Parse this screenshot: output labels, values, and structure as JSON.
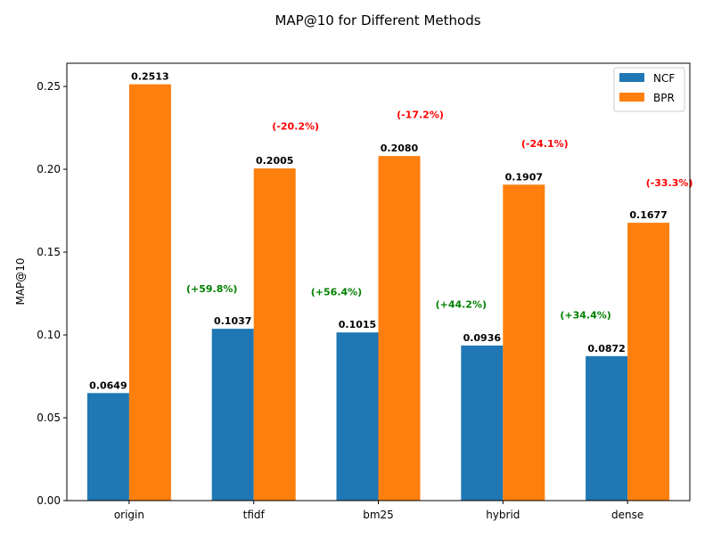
{
  "chart_data": {
    "type": "bar",
    "title": "MAP@10 for Different Methods",
    "xlabel": "",
    "ylabel": "MAP@10",
    "categories": [
      "origin",
      "tfidf",
      "bm25",
      "hybrid",
      "dense"
    ],
    "ylim": [
      0,
      0.264
    ],
    "yticks": [
      "0.00",
      "0.05",
      "0.10",
      "0.15",
      "0.20",
      "0.25"
    ],
    "grid": false,
    "legend_position": "top-right",
    "series": [
      {
        "name": "NCF",
        "color": "#1f77b4",
        "values": [
          0.0649,
          0.1037,
          0.1015,
          0.0936,
          0.0872
        ],
        "value_labels": [
          "0.0649",
          "0.1037",
          "0.1015",
          "0.0936",
          "0.0872"
        ]
      },
      {
        "name": "BPR",
        "color": "#ff7f0e",
        "values": [
          0.2513,
          0.2005,
          0.208,
          0.1907,
          0.1677
        ],
        "value_labels": [
          "0.2513",
          "0.2005",
          "0.2080",
          "0.1907",
          "0.1677"
        ]
      }
    ],
    "annotations": {
      "ncf_change": {
        "color": "#008000",
        "labels": [
          "",
          "(+59.8%)",
          "(+56.4%)",
          "(+44.2%)",
          "(+34.4%)"
        ],
        "y_values": [
          null,
          0.128,
          0.126,
          0.1185,
          0.112
        ]
      },
      "bpr_change": {
        "color": "#ff0000",
        "labels": [
          "",
          "(-20.2%)",
          "(-17.2%)",
          "(-24.1%)",
          "(-33.3%)"
        ],
        "y_values": [
          null,
          0.226,
          0.233,
          0.2155,
          0.192
        ]
      }
    }
  }
}
